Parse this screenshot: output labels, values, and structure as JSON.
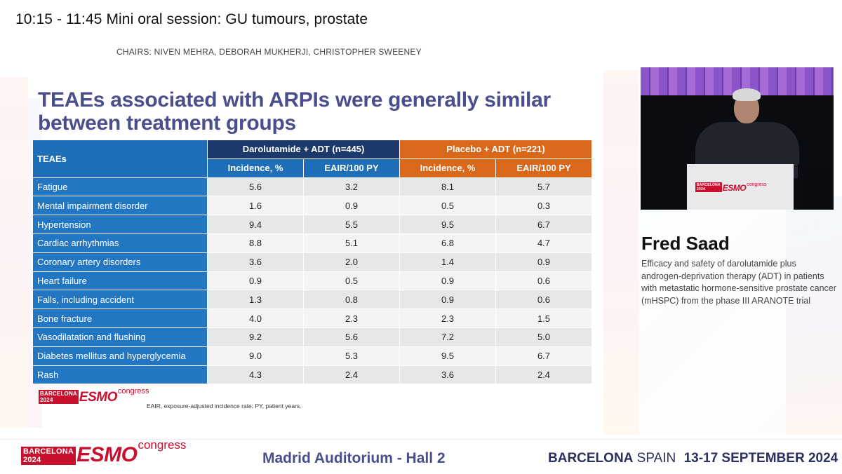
{
  "session": {
    "title": "10:15 - 11:45  Mini oral session: GU tumours, prostate",
    "chairs": "CHAIRS: NIVEN MEHRA, DEBORAH MUKHERJI, CHRISTOPHER SWEENEY"
  },
  "slide": {
    "title_line1": "TEAEs associated with ARPIs were generally similar",
    "title_line2": "between treatment groups",
    "table": {
      "col_teaes": "TEAEs",
      "group_daro": "Darolutamide + ADT (n=445)",
      "group_placebo": "Placebo + ADT (n=221)",
      "sub_incidence": "Incidence, %",
      "sub_eair": "EAIR/100 PY",
      "rows": [
        {
          "label": "Fatigue",
          "d_inc": "5.6",
          "d_eair": "3.2",
          "p_inc": "8.1",
          "p_eair": "5.7"
        },
        {
          "label": "Mental impairment disorder",
          "d_inc": "1.6",
          "d_eair": "0.9",
          "p_inc": "0.5",
          "p_eair": "0.3"
        },
        {
          "label": "Hypertension",
          "d_inc": "9.4",
          "d_eair": "5.5",
          "p_inc": "9.5",
          "p_eair": "6.7"
        },
        {
          "label": "Cardiac arrhythmias",
          "d_inc": "8.8",
          "d_eair": "5.1",
          "p_inc": "6.8",
          "p_eair": "4.7"
        },
        {
          "label": "Coronary artery disorders",
          "d_inc": "3.6",
          "d_eair": "2.0",
          "p_inc": "1.4",
          "p_eair": "0.9"
        },
        {
          "label": "Heart failure",
          "d_inc": "0.9",
          "d_eair": "0.5",
          "p_inc": "0.9",
          "p_eair": "0.6"
        },
        {
          "label": "Falls, including accident",
          "d_inc": "1.3",
          "d_eair": "0.8",
          "p_inc": "0.9",
          "p_eair": "0.6"
        },
        {
          "label": "Bone fracture",
          "d_inc": "4.0",
          "d_eair": "2.3",
          "p_inc": "2.3",
          "p_eair": "1.5"
        },
        {
          "label": "Vasodilatation and flushing",
          "d_inc": "9.2",
          "d_eair": "5.6",
          "p_inc": "7.2",
          "p_eair": "5.0"
        },
        {
          "label": "Diabetes mellitus and hyperglycemia",
          "d_inc": "9.0",
          "d_eair": "5.3",
          "p_inc": "9.5",
          "p_eair": "6.7"
        },
        {
          "label": "Rash",
          "d_inc": "4.3",
          "d_eair": "2.4",
          "p_inc": "3.6",
          "p_eair": "2.4"
        }
      ]
    },
    "footnote": "EAIR, exposure-adjusted incidence rate; PY, patient years."
  },
  "logo": {
    "city": "BARCELONA",
    "year": "2024",
    "brand": "ESMO",
    "suffix": "congress"
  },
  "speaker": {
    "name": "Fred Saad",
    "talk": "Efficacy and safety of darolutamide plus androgen-deprivation therapy (ADT) in patients with metastatic hormone-sensitive prostate cancer (mHSPC) from the phase III ARANOTE trial"
  },
  "footer": {
    "venue": "Madrid Auditorium - Hall 2",
    "city": "BARCELONA",
    "country": "SPAIN",
    "dates": "13-17 SEPTEMBER 2024"
  },
  "colors": {
    "title_purple": "#4a4e8c",
    "daro_navy": "#1b3a6b",
    "label_blue": "#2376c2",
    "placebo_orange": "#d9681a",
    "esmo_red": "#c8102e"
  }
}
